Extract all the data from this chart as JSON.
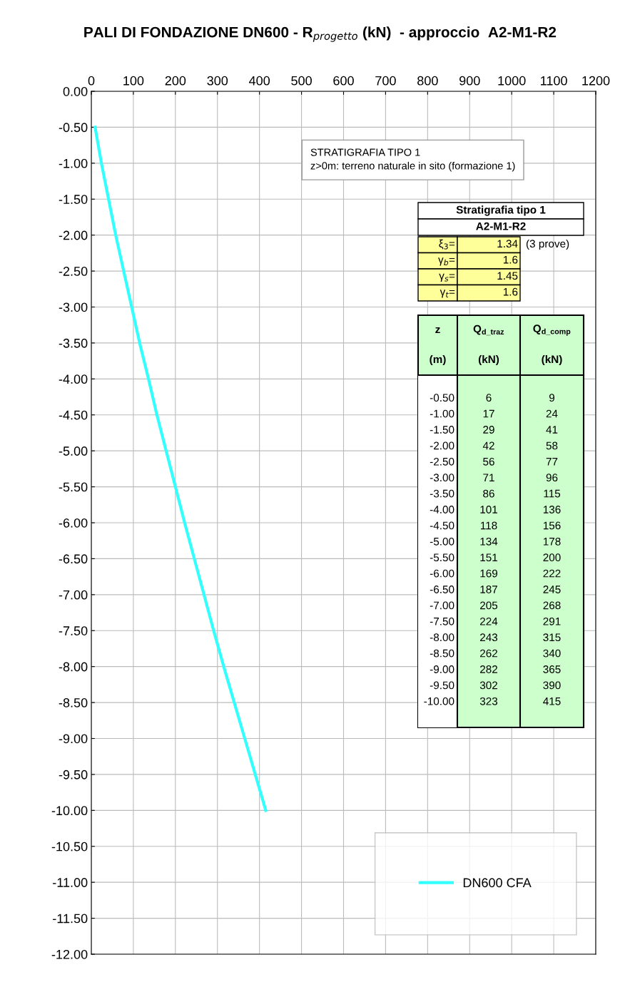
{
  "chart_data": {
    "type": "line",
    "title": "PALI DI FONDAZIONE DN600 - R$_{progetto}$ (kN)  - approccio  A2-M1-R2",
    "series": [
      {
        "name": "DN600 CFA",
        "color": "#33ffff",
        "x": [
          9,
          24,
          41,
          58,
          77,
          96,
          115,
          136,
          156,
          178,
          200,
          222,
          245,
          268,
          291,
          315,
          340,
          365,
          390,
          415
        ],
        "values": [
          -0.5,
          -1.0,
          -1.5,
          -2.0,
          -2.5,
          -3.0,
          -3.5,
          -4.0,
          -4.5,
          -5.0,
          -5.5,
          -6.0,
          -6.5,
          -7.0,
          -7.5,
          -8.0,
          -8.5,
          -9.0,
          -9.5,
          -10.0
        ]
      }
    ],
    "xlim": [
      0,
      1200
    ],
    "xticks": [
      0,
      100,
      200,
      300,
      400,
      500,
      600,
      700,
      800,
      900,
      1000,
      1100,
      1200
    ],
    "ylim": [
      -12,
      0
    ],
    "yticks": [
      {
        "value": 0,
        "label": "0.00"
      },
      {
        "value": -0.5,
        "label": "-0.50"
      },
      {
        "value": -1,
        "label": "-1.00"
      },
      {
        "value": -1.5,
        "label": "-1.50"
      },
      {
        "value": -2,
        "label": "-2.00"
      },
      {
        "value": -2.5,
        "label": "-2.50"
      },
      {
        "value": -3,
        "label": "-3.00"
      },
      {
        "value": -3.5,
        "label": "-3.50"
      },
      {
        "value": -4,
        "label": "-4.00"
      },
      {
        "value": -4.5,
        "label": "-4.50"
      },
      {
        "value": -5,
        "label": "-5.00"
      },
      {
        "value": -5.5,
        "label": "-5.50"
      },
      {
        "value": -6,
        "label": "-6.00"
      },
      {
        "value": -6.5,
        "label": "-6.50"
      },
      {
        "value": -7,
        "label": "-7.00"
      },
      {
        "value": -7.5,
        "label": "-7.50"
      },
      {
        "value": -8,
        "label": "-8.00"
      },
      {
        "value": -8.5,
        "label": "-8.50"
      },
      {
        "value": -9,
        "label": "-9.00"
      },
      {
        "value": -9.5,
        "label": "-9.50"
      },
      {
        "value": -10,
        "label": "-10.00"
      },
      {
        "value": -10.5,
        "label": "-10.50"
      },
      {
        "value": -11,
        "label": "-11.00"
      },
      {
        "value": -11.5,
        "label": "-11.50"
      },
      {
        "value": -12,
        "label": "-12.00"
      }
    ],
    "grid": true,
    "legend": "bottom right",
    "marker": "none",
    "line_style": "solid",
    "annotations": [
      "STRATIGRAFIA TIPO 1\nz>0m: terreno naturale in sito (formazione 1)",
      "Stratigrafia tipo 1",
      "A2-M1-R2",
      "ξ$_{3}$=\t1.34\t(3 prove)",
      "γ$_{b}$=\t1.6\t",
      "γ$_{s}$=\t1.45\t",
      "γ$_{t}$=\t1.6\t",
      "z\tQ$_{d_traz}$\tQ$_{d_comp}$",
      "(m)\t(kN)\t(kN)",
      "-0.50\t6\t9",
      "-1.00\t17\t24",
      "-1.50\t29\t41",
      "-2.00\t42\t58",
      "-2.50\t56\t77",
      "-3.00\t71\t96",
      "-3.50\t86\t115",
      "-4.00\t101\t136",
      "-4.50\t118\t156",
      "-5.00\t134\t178",
      "-5.50\t151\t200",
      "-6.00\t169\t222",
      "-6.50\t187\t245",
      "-7.00\t205\t268",
      "-7.50\t224\t291",
      "-8.00\t243\t315",
      "-8.50\t262\t340",
      "-9.00\t282\t365",
      "-9.50\t302\t390",
      "-10.00\t323\t415"
    ]
  }
}
